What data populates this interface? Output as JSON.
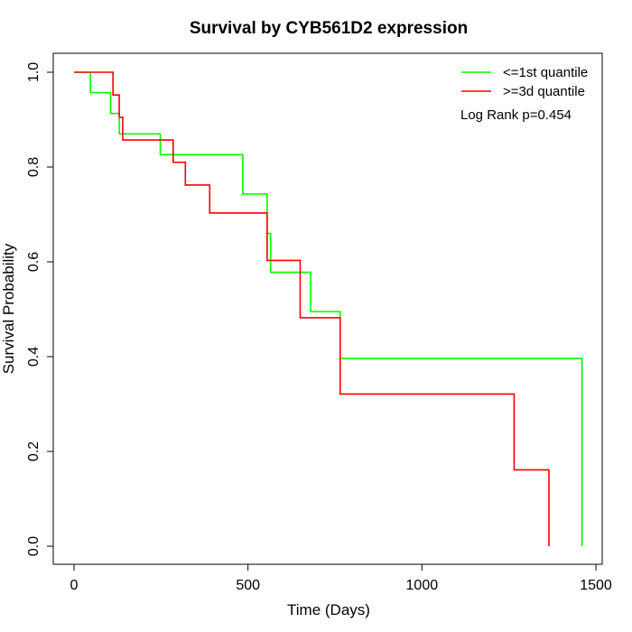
{
  "chart_data": {
    "type": "line",
    "step": true,
    "title": "Survival by CYB561D2 expression",
    "xlabel": "Time (Days)",
    "ylabel": "Survival Probability",
    "xlim": [
      0,
      1500
    ],
    "ylim": [
      0,
      1
    ],
    "x_ticks": [
      0,
      500,
      1000,
      1500
    ],
    "y_ticks": [
      0.0,
      0.2,
      0.4,
      0.6,
      0.8,
      1.0
    ],
    "x_tick_labels": [
      "0",
      "500",
      "1000",
      "1500"
    ],
    "y_tick_labels": [
      "0.0",
      "0.2",
      "0.4",
      "0.6",
      "0.8",
      "1.0"
    ],
    "grid": false,
    "legend_position": "top-right",
    "annotation": "Log Rank p=0.454",
    "series": [
      {
        "name": "<=1st quantile",
        "color": "#00ff00",
        "x": [
          0,
          47,
          105,
          130,
          248,
          485,
          555,
          565,
          680,
          765,
          1460
        ],
        "y": [
          1.0,
          0.957,
          0.913,
          0.87,
          0.826,
          0.743,
          0.66,
          0.578,
          0.495,
          0.396,
          0.0
        ]
      },
      {
        "name": ">=3d quantile",
        "color": "#ff0000",
        "x": [
          0,
          112,
          130,
          140,
          285,
          320,
          390,
          555,
          650,
          765,
          1265,
          1365
        ],
        "y": [
          1.0,
          0.952,
          0.905,
          0.857,
          0.81,
          0.762,
          0.703,
          0.603,
          0.482,
          0.321,
          0.161,
          0.0
        ]
      }
    ]
  }
}
